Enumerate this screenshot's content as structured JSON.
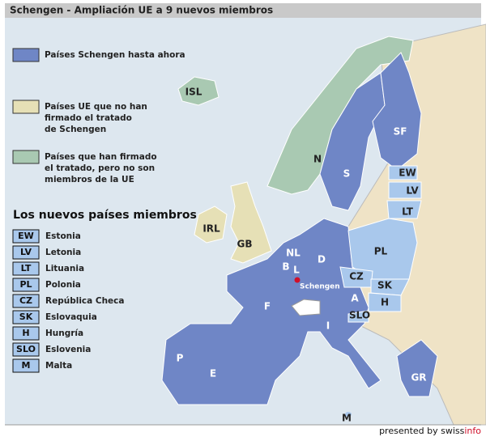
{
  "title": "Schengen - Ampliación UE a 9 nuevos miembros",
  "legend": [
    {
      "lines": [
        "Países Schengen hasta ahora"
      ],
      "color": "#6f86c6"
    },
    {
      "lines": [
        "Países UE que no han",
        "firmado el tratado",
        "de Schengen"
      ],
      "color": "#e6e0b6"
    },
    {
      "lines": [
        "Países que han firmado",
        "el tratado, pero no son",
        "miembros de la UE"
      ],
      "color": "#a9c9b2"
    }
  ],
  "new_members_title": "Los nuevos países miembros",
  "new_members": [
    {
      "code": "EW",
      "name": "Estonia"
    },
    {
      "code": "LV",
      "name": "Letonia"
    },
    {
      "code": "LT",
      "name": "Lituania"
    },
    {
      "code": "PL",
      "name": "Polonia"
    },
    {
      "code": "CZ",
      "name": "República Checa"
    },
    {
      "code": "SK",
      "name": "Eslovaquia"
    },
    {
      "code": "H",
      "name": "Hungría"
    },
    {
      "code": "SLO",
      "name": "Eslovenia"
    },
    {
      "code": "M",
      "name": "Malta"
    }
  ],
  "map_labels": [
    "ISL",
    "N",
    "S",
    "SF",
    "EW",
    "LV",
    "LT",
    "PL",
    "D",
    "NL",
    "B",
    "L",
    "CZ",
    "SK",
    "H",
    "A",
    "SLO",
    "I",
    "F",
    "E",
    "P",
    "GR",
    "M",
    "GB",
    "IRL"
  ],
  "city": "Schengen",
  "credit": [
    "presented by swiss",
    "info"
  ]
}
